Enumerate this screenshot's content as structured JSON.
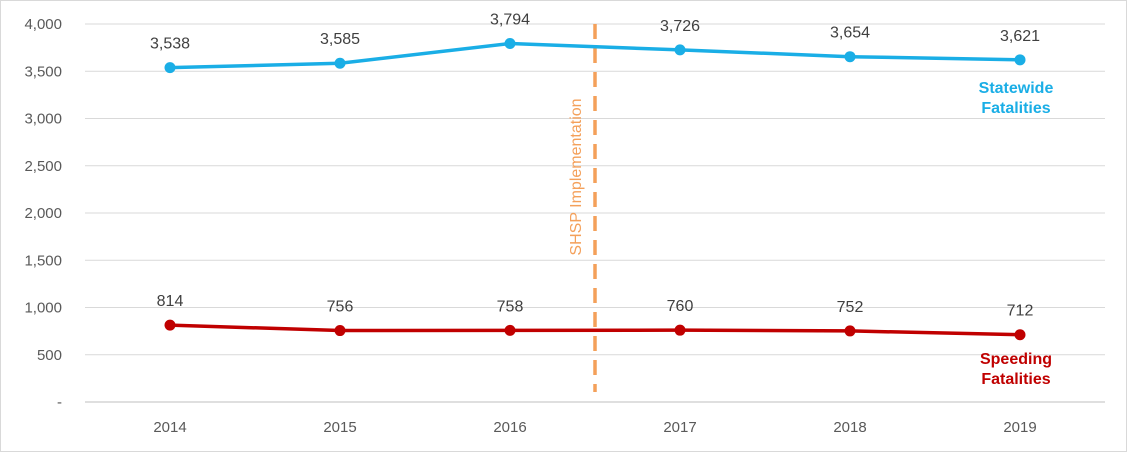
{
  "chart_data": {
    "type": "line",
    "x": [
      "2014",
      "2015",
      "2016",
      "2017",
      "2018",
      "2019"
    ],
    "ylim": [
      0,
      4000
    ],
    "yticks": [
      0,
      500,
      1000,
      1500,
      2000,
      2500,
      3000,
      3500,
      4000
    ],
    "ytick_labels": [
      "-",
      "500",
      "1,000",
      "1,500",
      "2,000",
      "2,500",
      "3,000",
      "3,500",
      "4,000"
    ],
    "grid": "horizontal",
    "series": [
      {
        "name": "Statewide Fatalities",
        "name_lines": [
          "Statewide",
          "Fatalities"
        ],
        "color": "#1aaee6",
        "values": [
          3538,
          3585,
          3794,
          3726,
          3654,
          3621
        ],
        "labels": [
          "3,538",
          "3,585",
          "3,794",
          "3,726",
          "3,654",
          "3,621"
        ]
      },
      {
        "name": "Speeding Fatalities",
        "name_lines": [
          "Speeding",
          "Fatalities"
        ],
        "color": "#c00000",
        "values": [
          814,
          756,
          758,
          760,
          752,
          712
        ],
        "labels": [
          "814",
          "756",
          "758",
          "760",
          "752",
          "712"
        ]
      }
    ],
    "annotations": [
      {
        "text": "SHSP Implementation",
        "x_between": [
          "2016",
          "2017"
        ],
        "color": "#f4a05a",
        "style": "dashed-vertical"
      }
    ]
  }
}
